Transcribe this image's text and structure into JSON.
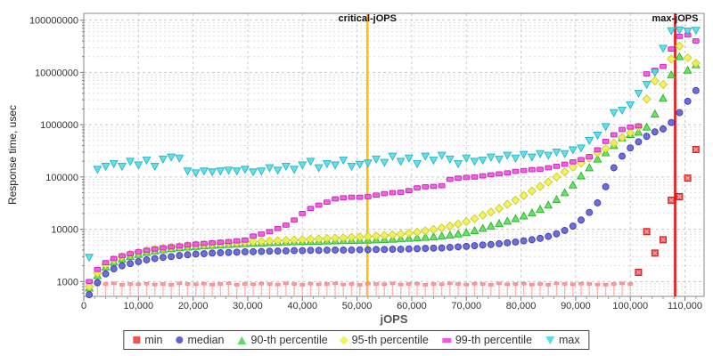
{
  "chart_data": {
    "type": "scatter",
    "title": "",
    "xlabel": "jOPS",
    "ylabel": "Response time, usec",
    "x_axis": {
      "min": 0,
      "max": 113500,
      "ticks": [
        0,
        10000,
        20000,
        30000,
        40000,
        50000,
        60000,
        70000,
        80000,
        90000,
        100000,
        110000
      ],
      "minor_step": 2000,
      "minor_max": 112000
    },
    "y_axis": {
      "scale": "log",
      "min": 520,
      "max": 135000000,
      "ticks": [
        1000,
        10000,
        100000,
        1000000,
        10000000,
        100000000
      ]
    },
    "vlines": [
      {
        "label": "critical-jOPS",
        "x": 51900,
        "color": "#ffc000"
      },
      {
        "label": "max-jOPS",
        "x": 108200,
        "color": "#ee1111"
      }
    ],
    "x": [
      1000,
      2500,
      4000,
      5500,
      7000,
      8500,
      10000,
      11500,
      13000,
      14500,
      16000,
      17500,
      19000,
      20500,
      22000,
      23500,
      25000,
      26500,
      28000,
      29500,
      31000,
      32500,
      34000,
      35500,
      37000,
      38500,
      40000,
      41500,
      43000,
      44500,
      46000,
      47500,
      49000,
      50500,
      52000,
      53500,
      55000,
      56500,
      58000,
      59500,
      61000,
      62500,
      64000,
      65500,
      67000,
      68500,
      70000,
      71500,
      73000,
      74500,
      76000,
      77500,
      79000,
      80500,
      82000,
      83500,
      85000,
      86500,
      88000,
      89500,
      91000,
      92500,
      94000,
      95500,
      97000,
      98500,
      100000,
      101500,
      103000,
      104500,
      106000,
      107500,
      109000,
      110500,
      112000
    ],
    "series": [
      {
        "name": "min",
        "marker": "square-stem",
        "color": "#f25454",
        "edge": "#cc2222",
        "stem": "#ffb4b4",
        "cap": "#ff9a9a",
        "values": [
          900,
          880,
          900,
          920,
          870,
          900,
          890,
          910,
          880,
          900,
          870,
          920,
          900,
          890,
          910,
          880,
          900,
          920,
          870,
          900,
          890,
          910,
          900,
          880,
          920,
          900,
          870,
          910,
          890,
          900,
          920,
          880,
          900,
          870,
          910,
          900,
          890,
          920,
          880,
          900,
          910,
          870,
          900,
          890,
          920,
          900,
          880,
          910,
          900,
          870,
          920,
          890,
          900,
          910,
          880,
          900,
          870,
          920,
          900,
          890,
          910,
          900,
          880,
          870,
          900,
          920,
          900,
          1500,
          9000,
          3500,
          6300,
          36000,
          42000,
          95000,
          335000
        ]
      },
      {
        "name": "median",
        "marker": "circle",
        "color": "#6161d8",
        "edge": "#3c3cb0",
        "values": [
          560,
          950,
          1400,
          1750,
          2000,
          2200,
          2400,
          2600,
          2750,
          2900,
          3000,
          3150,
          3250,
          3350,
          3400,
          3500,
          3550,
          3600,
          3650,
          3700,
          3720,
          3750,
          3800,
          3820,
          3850,
          3900,
          3900,
          3950,
          3950,
          3980,
          4000,
          4000,
          4000,
          4050,
          4050,
          4100,
          4100,
          4150,
          4150,
          4200,
          4250,
          4300,
          4350,
          4400,
          4500,
          4600,
          4700,
          4850,
          5000,
          5100,
          5300,
          5500,
          5700,
          6000,
          6300,
          6700,
          7300,
          8200,
          9500,
          11500,
          15000,
          21000,
          32000,
          65000,
          150000,
          250000,
          360000,
          470000,
          600000,
          730000,
          830000,
          1100000,
          1700000,
          2800000,
          4500000
        ]
      },
      {
        "name": "90-th percentile",
        "marker": "triangle-up",
        "color": "#5ae05a",
        "edge": "#2eb42e",
        "values": [
          750,
          1300,
          1900,
          2350,
          2700,
          3000,
          3300,
          3600,
          3850,
          4050,
          4250,
          4400,
          4550,
          4700,
          4800,
          4900,
          5000,
          5100,
          5200,
          5300,
          5400,
          5450,
          5550,
          5600,
          5700,
          5750,
          5800,
          5850,
          5900,
          5950,
          6000,
          6050,
          6100,
          6150,
          6200,
          6250,
          6350,
          6450,
          6550,
          6700,
          6850,
          7000,
          7200,
          7400,
          7700,
          8100,
          8600,
          9400,
          10400,
          11500,
          12800,
          14300,
          16000,
          18000,
          20500,
          24000,
          29000,
          37000,
          50000,
          70000,
          105000,
          150000,
          220000,
          290000,
          400000,
          560000,
          650000,
          720000,
          900000,
          1600000,
          3200000,
          9000000,
          20000000,
          11000000,
          14000000
        ]
      },
      {
        "name": "95-th percentile",
        "marker": "diamond",
        "color": "#f2f253",
        "edge": "#cbcb2a",
        "values": [
          800,
          1450,
          2100,
          2600,
          3000,
          3350,
          3650,
          3900,
          4150,
          4350,
          4550,
          4700,
          4850,
          5000,
          5100,
          5200,
          5350,
          5450,
          5550,
          5650,
          5750,
          5850,
          5950,
          6050,
          6150,
          6250,
          6350,
          6450,
          6550,
          6650,
          6750,
          6850,
          7000,
          7100,
          7250,
          7400,
          7600,
          7800,
          8100,
          8400,
          8800,
          9300,
          9900,
          10600,
          11500,
          12600,
          14000,
          16000,
          18500,
          21300,
          25000,
          30000,
          36000,
          44000,
          54000,
          66000,
          80000,
          100000,
          125000,
          155000,
          185000,
          230000,
          290000,
          350000,
          440000,
          570000,
          700000,
          900000,
          3100000,
          6900000,
          5900000,
          18000000,
          32000000,
          19000000,
          15000000
        ]
      },
      {
        "name": "99-th percentile",
        "marker": "rect",
        "color": "#f255e2",
        "edge": "#c424b6",
        "values": [
          1000,
          1700,
          2300,
          2750,
          3100,
          3400,
          3700,
          3950,
          4200,
          4400,
          4600,
          4800,
          5000,
          5200,
          5350,
          5500,
          5650,
          5800,
          6000,
          6200,
          7400,
          8100,
          9000,
          10300,
          12000,
          15000,
          20000,
          25000,
          29000,
          33000,
          38000,
          40000,
          41000,
          41000,
          42000,
          45000,
          48000,
          50000,
          51000,
          55000,
          62000,
          65000,
          66000,
          68000,
          90000,
          95000,
          98000,
          100000,
          105000,
          110000,
          115000,
          120000,
          128000,
          133000,
          138000,
          140000,
          150000,
          160000,
          175000,
          195000,
          215000,
          245000,
          330000,
          480000,
          640000,
          810000,
          900000,
          950000,
          9400000,
          11000000,
          13000000,
          28000000,
          49000000,
          52000000,
          40000000
        ]
      },
      {
        "name": "max",
        "marker": "triangle-down",
        "color": "#57dde8",
        "edge": "#27b4c8",
        "values": [
          2900,
          140000,
          160000,
          180000,
          160000,
          200000,
          170000,
          210000,
          160000,
          220000,
          240000,
          230000,
          130000,
          120000,
          130000,
          125000,
          130000,
          135000,
          130000,
          140000,
          125000,
          130000,
          150000,
          135000,
          160000,
          140000,
          170000,
          200000,
          150000,
          180000,
          170000,
          210000,
          160000,
          175000,
          185000,
          220000,
          190000,
          250000,
          200000,
          230000,
          180000,
          250000,
          210000,
          260000,
          220000,
          180000,
          230000,
          200000,
          210000,
          240000,
          220000,
          260000,
          230000,
          270000,
          240000,
          280000,
          260000,
          300000,
          280000,
          330000,
          360000,
          500000,
          630000,
          920000,
          1700000,
          1900000,
          2400000,
          4000000,
          5900000,
          10000000,
          29000000,
          63000000,
          65000000,
          62000000,
          64000000
        ]
      }
    ],
    "legend": {
      "position": "bottom",
      "entries": [
        "min",
        "median",
        "90-th percentile",
        "95-th percentile",
        "99-th percentile",
        "max"
      ]
    }
  }
}
